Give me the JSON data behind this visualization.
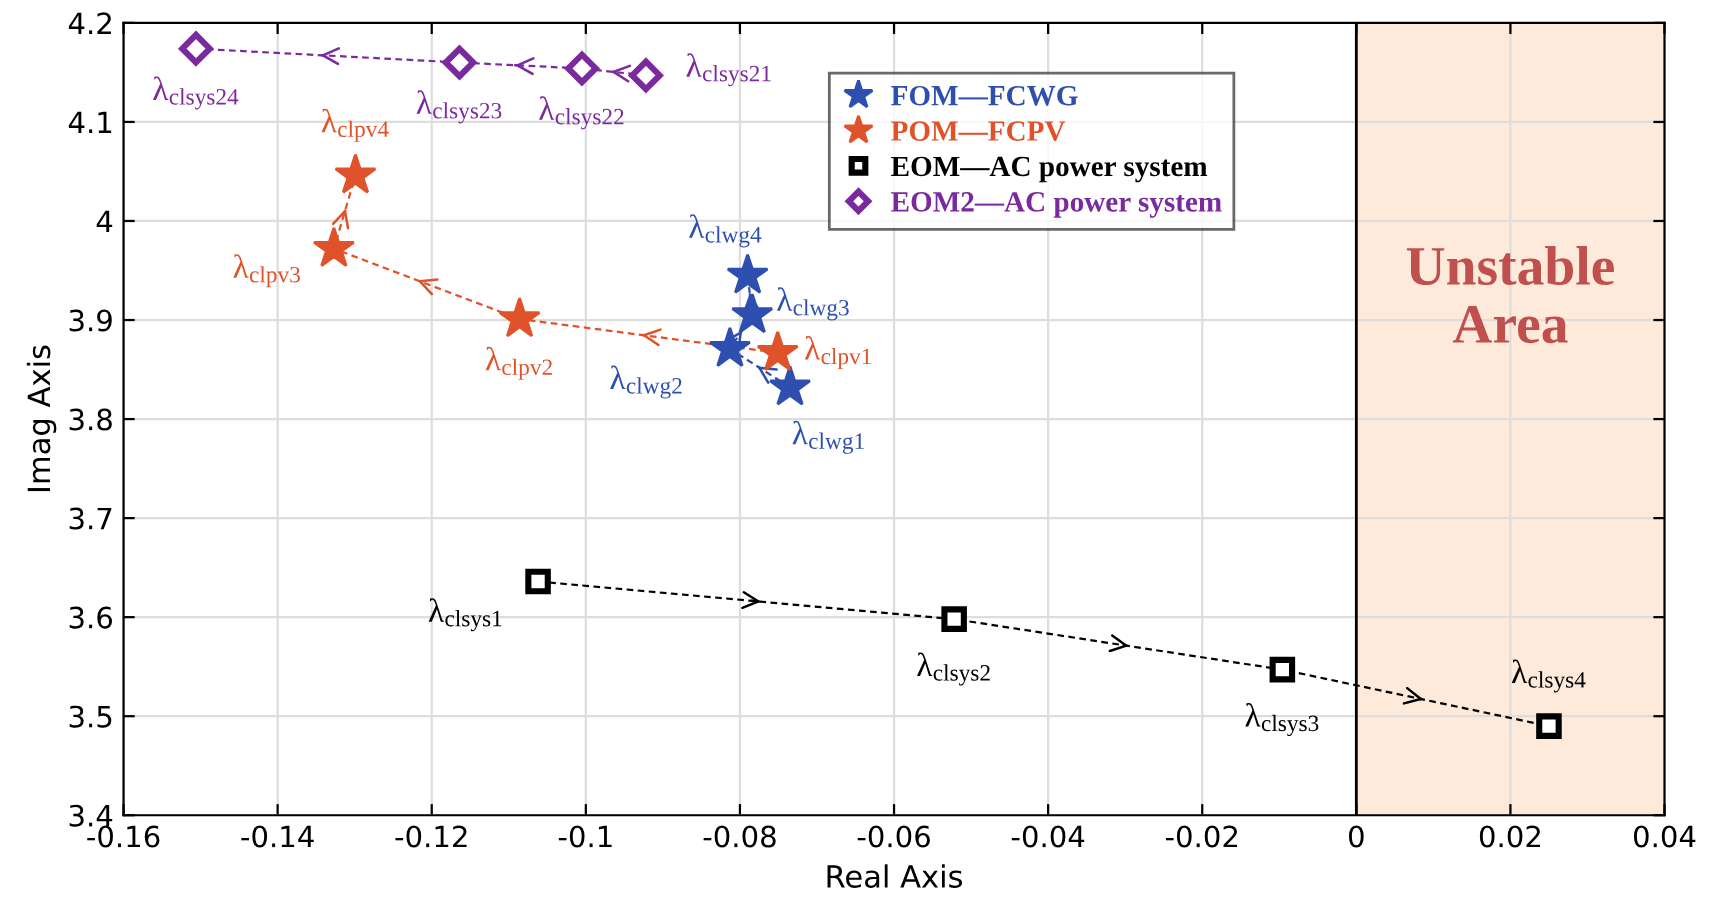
{
  "chart_data": {
    "type": "line",
    "xlabel": "Real Axis",
    "ylabel": "Imag Axis",
    "xlim": [
      -0.16,
      0.04
    ],
    "ylim": [
      3.4,
      4.2
    ],
    "xticks": [
      -0.16,
      -0.14,
      -0.12,
      -0.1,
      -0.08,
      -0.06,
      -0.04,
      -0.02,
      0,
      0.02,
      0.04
    ],
    "yticks": [
      3.4,
      3.5,
      3.6,
      3.7,
      3.8,
      3.9,
      4,
      4.1,
      4.2
    ],
    "grid": true,
    "legend": "top right",
    "line_style": "dashed",
    "series": [
      {
        "name": "FOM—FCWG",
        "color": "#2e4fb0",
        "marker": "star",
        "x": [
          -0.0735,
          -0.0813,
          -0.0784,
          -0.079
        ],
        "values": [
          3.832,
          3.871,
          3.905,
          3.945
        ]
      },
      {
        "name": "POM—FCPV",
        "color": "#e0522a",
        "marker": "star",
        "x": [
          -0.0751,
          -0.1086,
          -0.1327,
          -0.1299
        ],
        "values": [
          3.867,
          3.901,
          3.972,
          4.046
        ]
      },
      {
        "name": "EOM—AC power system",
        "color": "#000000",
        "marker": "square",
        "x": [
          -0.1062,
          -0.0522,
          -0.0096,
          0.025
        ],
        "values": [
          3.636,
          3.598,
          3.547,
          3.49
        ]
      },
      {
        "name": "EOM2—AC power system",
        "color": "#7b2a9e",
        "marker": "diamond",
        "x": [
          -0.0922,
          -0.1005,
          -0.1164,
          -0.1506
        ],
        "values": [
          4.147,
          4.154,
          4.16,
          4.174
        ]
      }
    ],
    "bands": [
      {
        "axis": "x",
        "from": 0,
        "to": 0.04,
        "label": "Unstable\nArea",
        "color": "#fdeadb"
      }
    ],
    "annotations": [
      {
        "text": "λ$_{clwg1}$",
        "x": -0.0735,
        "y": 3.832
      },
      {
        "text": "λ$_{clwg2}$",
        "x": -0.0813,
        "y": 3.871
      },
      {
        "text": "λ$_{clwg3}$",
        "x": -0.0784,
        "y": 3.905
      },
      {
        "text": "λ$_{clwg4}$",
        "x": -0.079,
        "y": 3.945
      },
      {
        "text": "λ$_{clpv1}$",
        "x": -0.0751,
        "y": 3.867
      },
      {
        "text": "λ$_{clpv2}$",
        "x": -0.1086,
        "y": 3.901
      },
      {
        "text": "λ$_{clpv3}$",
        "x": -0.1327,
        "y": 3.972
      },
      {
        "text": "λ$_{clpv4}$",
        "x": -0.1299,
        "y": 4.046
      },
      {
        "text": "λ$_{clsys1}$",
        "x": -0.1062,
        "y": 3.636
      },
      {
        "text": "λ$_{clsys2}$",
        "x": -0.0522,
        "y": 3.598
      },
      {
        "text": "λ$_{clsys3}$",
        "x": -0.0096,
        "y": 3.547
      },
      {
        "text": "λ$_{clsys4}$",
        "x": 0.025,
        "y": 3.49
      },
      {
        "text": "λ$_{clsys21}$",
        "x": -0.0922,
        "y": 4.147
      },
      {
        "text": "λ$_{clsys22}$",
        "x": -0.1005,
        "y": 4.154
      },
      {
        "text": "λ$_{clsys23}$",
        "x": -0.1164,
        "y": 4.16
      },
      {
        "text": "λ$_{clsys24}$",
        "x": -0.1506,
        "y": 4.174
      }
    ]
  }
}
